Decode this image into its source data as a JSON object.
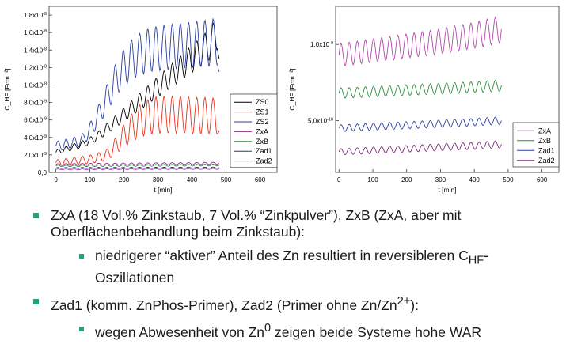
{
  "chart_data": [
    {
      "type": "line",
      "xlabel": "t [min]",
      "ylabel": "C_HF [Fcm⁻²]",
      "xlim": [
        -20,
        650
      ],
      "ylim": [
        0,
        1.9e-08
      ],
      "xticks": [
        0,
        100,
        200,
        300,
        400,
        500,
        600
      ],
      "yticks": [
        0,
        2e-09,
        4e-09,
        6e-09,
        8e-09,
        1e-08,
        1.2e-08,
        1.4e-08,
        1.6e-08,
        1.8e-08
      ],
      "ytick_labels": [
        "0,0",
        "2,0x10-9",
        "4,0x10-9",
        "6,0x10-9",
        "8,0x10-9",
        "1,0x10-8",
        "1,2x10-8",
        "1,4x10-8",
        "1,6x10-8",
        "1,8x10-8"
      ],
      "legend_position": "right",
      "series": [
        {
          "name": "ZS0",
          "color": "#000000",
          "x": [
            0,
            25,
            50,
            75,
            100,
            125,
            150,
            175,
            200,
            225,
            250,
            275,
            300,
            325,
            350,
            375,
            400,
            425,
            450,
            475,
            480
          ],
          "y": [
            2.3e-09,
            2.6e-09,
            2.9e-09,
            3.2e-09,
            3.6e-09,
            4.2e-09,
            5e-09,
            5.8e-09,
            6.6e-09,
            7.4e-09,
            8.2e-09,
            9e-09,
            9.8e-09,
            1.06e-08,
            1.14e-08,
            1.22e-08,
            1.3e-08,
            1.38e-08,
            1.46e-08,
            1.6e-08,
            1.3e-08
          ]
        },
        {
          "name": "ZS1",
          "color": "#e8341c",
          "x": [
            0,
            25,
            50,
            75,
            100,
            125,
            150,
            175,
            200,
            225,
            250,
            275,
            300,
            325,
            350,
            375,
            400,
            425,
            450,
            475,
            480
          ],
          "y": [
            1.1e-09,
            1.2e-09,
            1.3e-09,
            1.4e-09,
            1.5e-09,
            1.7e-09,
            2e-09,
            3e-09,
            4.2e-09,
            5.2e-09,
            6e-09,
            6.4e-09,
            6.6e-09,
            6.6e-09,
            6.6e-09,
            6.6e-09,
            6.5e-09,
            6.5e-09,
            6.5e-09,
            6.4e-09,
            4.8e-09
          ]
        },
        {
          "name": "ZS2",
          "color": "#2b3fa0",
          "x": [
            0,
            25,
            50,
            75,
            100,
            125,
            150,
            175,
            200,
            225,
            250,
            275,
            300,
            325,
            350,
            375,
            400,
            425,
            450,
            475,
            480
          ],
          "y": [
            3e-09,
            3.2e-09,
            3.4e-09,
            3.6e-09,
            4.8e-09,
            6.5e-09,
            8.5e-09,
            1.05e-08,
            1.2e-08,
            1.3e-08,
            1.36e-08,
            1.4e-08,
            1.42e-08,
            1.43e-08,
            1.44e-08,
            1.45e-08,
            1.46e-08,
            1.47e-08,
            1.48e-08,
            1.5e-08,
            1.15e-08
          ]
        },
        {
          "name": "ZxA",
          "color": "#8f2d8f",
          "x": [
            0,
            100,
            200,
            300,
            400,
            480
          ],
          "y": [
            9e-10,
            9.3e-10,
            9.6e-10,
            9.9e-10,
            1.02e-09,
            1.05e-09
          ]
        },
        {
          "name": "ZxB",
          "color": "#2e8b3a",
          "x": [
            0,
            100,
            200,
            300,
            400,
            480
          ],
          "y": [
            7.5e-10,
            7.7e-10,
            7.9e-10,
            8.1e-10,
            8.3e-10,
            8.5e-10
          ]
        },
        {
          "name": "Zad1",
          "color": "#3a2e7a",
          "x": [
            0,
            100,
            200,
            300,
            400,
            480
          ],
          "y": [
            5e-10,
            5.1e-10,
            5.2e-10,
            5.3e-10,
            5.4e-10,
            5.5e-10
          ]
        },
        {
          "name": "Zad2",
          "color": "#b04aa8",
          "x": [
            0,
            100,
            200,
            300,
            400,
            480
          ],
          "y": [
            3.5e-10,
            3.6e-10,
            3.7e-10,
            3.8e-10,
            3.9e-10,
            4e-10
          ]
        }
      ]
    },
    {
      "type": "line",
      "xlabel": "t [min]",
      "ylabel": "C_HF [Fcm⁻²]",
      "xlim": [
        -10,
        650
      ],
      "ylim": [
        1.6e-10,
        1.25e-09
      ],
      "xticks": [
        0,
        100,
        200,
        300,
        400,
        500,
        600
      ],
      "yticks": [
        5e-10,
        1e-09
      ],
      "ytick_labels": [
        "5,0x10-10",
        "1,0x10-9"
      ],
      "legend_position": "right",
      "series": [
        {
          "name": "ZxA",
          "color": "#b04aa8",
          "x": [
            0,
            100,
            200,
            300,
            400,
            480
          ],
          "y": [
            9.3e-10,
            9.6e-10,
            9.9e-10,
            1.02e-09,
            1.06e-09,
            1.1e-09
          ]
        },
        {
          "name": "ZxB",
          "color": "#2e8b3a",
          "x": [
            0,
            100,
            200,
            300,
            400,
            480
          ],
          "y": [
            6.8e-10,
            6.9e-10,
            7e-10,
            7.1e-10,
            7.2e-10,
            7.3e-10
          ]
        },
        {
          "name": "Zad1",
          "color": "#2b3fa0",
          "x": [
            0,
            100,
            200,
            300,
            400,
            480
          ],
          "y": [
            4.5e-10,
            4.6e-10,
            4.7e-10,
            4.8e-10,
            4.9e-10,
            5e-10
          ]
        },
        {
          "name": "Zad2",
          "color": "#7a2a7a",
          "x": [
            0,
            100,
            200,
            300,
            400,
            480
          ],
          "y": [
            2.95e-10,
            3.05e-10,
            3.15e-10,
            3.25e-10,
            3.35e-10,
            3.45e-10
          ]
        }
      ]
    }
  ],
  "bullets": {
    "b1": "ZxA (18 Vol.% Zinkstaub, 7 Vol.% “Zinkpulver”), ZxB (ZxA, aber mit Oberflächenbehandlung beim Zinkstaub):",
    "b1a_pre": "niedrigerer “aktiver” Anteil des Zn resultiert in reversibleren C",
    "b1a_sub": "HF",
    "b1a_post": "-Oszillationen",
    "b2_pre": "Zad1 (komm. ZnPhos-Primer), Zad2 (Primer ohne Zn/Zn",
    "b2_sup": "2+",
    "b2_post": "):",
    "b2a_pre": "wegen Abwesenheit von Zn",
    "b2a_sup": "0",
    "b2a_post": " zeigen beide Systeme hohe WAR"
  },
  "colors": {
    "bullet": "#27a36f"
  }
}
